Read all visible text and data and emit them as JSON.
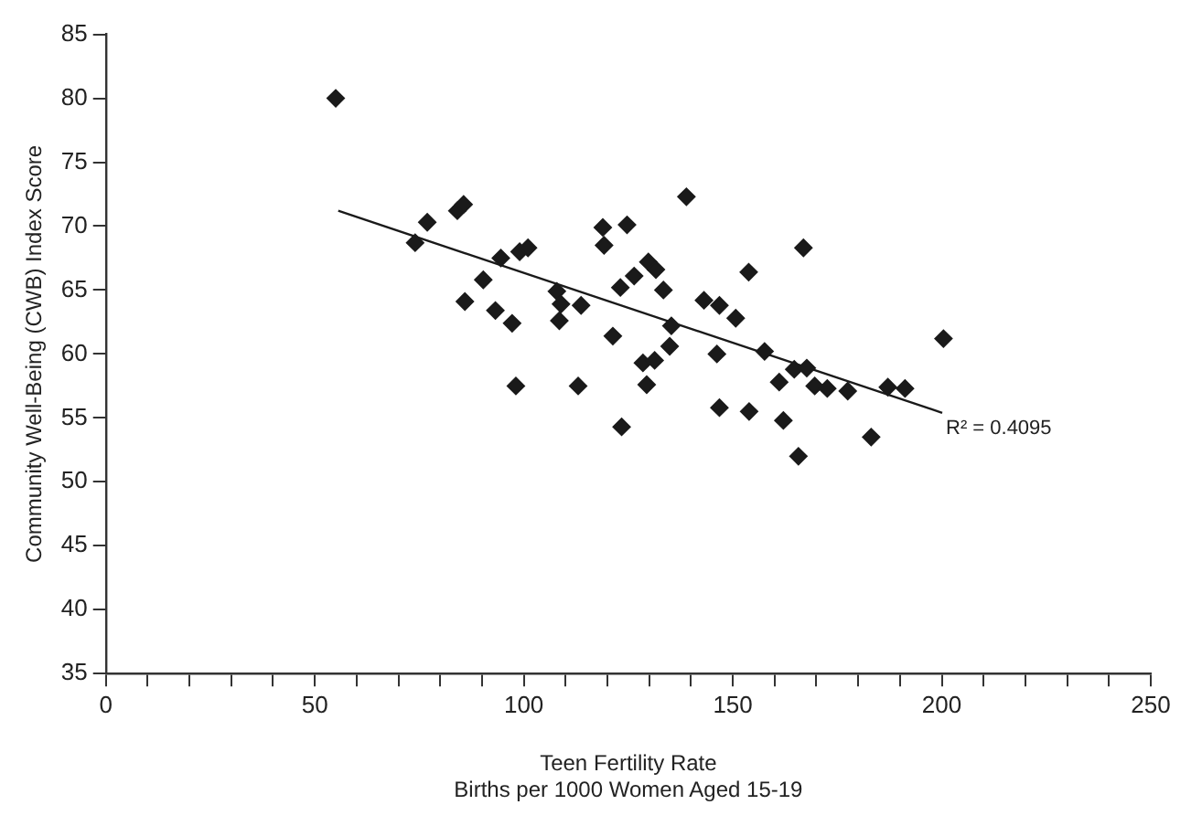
{
  "chart_data": {
    "type": "scatter",
    "xlabel": "Teen Fertility Rate\nBirths per 1000 Women Aged 15-19",
    "ylabel": "Community Well-Being (CWB) Index Score",
    "xlim": [
      0,
      250
    ],
    "ylim": [
      35,
      85
    ],
    "xticks": [
      0,
      {
        "value": 10,
        "label": null
      },
      {
        "value": 20,
        "label": null
      },
      {
        "value": 30,
        "label": null
      },
      {
        "value": 40,
        "label": null
      },
      50,
      {
        "value": 60,
        "label": null
      },
      {
        "value": 70,
        "label": null
      },
      {
        "value": 80,
        "label": null
      },
      {
        "value": 90,
        "label": null
      },
      100,
      {
        "value": 110,
        "label": null
      },
      {
        "value": 120,
        "label": null
      },
      {
        "value": 130,
        "label": null
      },
      {
        "value": 140,
        "label": null
      },
      150,
      {
        "value": 160,
        "label": null
      },
      {
        "value": 170,
        "label": null
      },
      {
        "value": 180,
        "label": null
      },
      {
        "value": 190,
        "label": null
      },
      200,
      {
        "value": 210,
        "label": null
      },
      {
        "value": 220,
        "label": null
      },
      {
        "value": 230,
        "label": null
      },
      {
        "value": 240,
        "label": null
      },
      250
    ],
    "yticks": [
      35,
      40,
      45,
      50,
      55,
      60,
      65,
      70,
      75,
      80,
      85
    ],
    "grid": false,
    "legend": false,
    "series": [
      {
        "type": "scatter",
        "marker": "diamond",
        "color": "#1a1a1a",
        "x": [
          55,
          74,
          76.9,
          84.1,
          85.6,
          94.5,
          99,
          101,
          90.3,
          85.9,
          93.2,
          97.2,
          107.9,
          108.9,
          108.5,
          113.7,
          98.1,
          113,
          118.9,
          119.2,
          138.9,
          124.7,
          166.9,
          129.8,
          131.6,
          153.8,
          126.4,
          123.1,
          133.4,
          143.1,
          146.8,
          150.7,
          121.3,
          135.3,
          134.9,
          146.2,
          157.6,
          200.4,
          128.5,
          131.3,
          129.4,
          164.7,
          167.7,
          161.1,
          169.6,
          172.6,
          177.5,
          187.1,
          191.2,
          146.8,
          153.9,
          162.1,
          123.4,
          183.1,
          165.7
        ],
        "values": [
          80,
          68.7,
          70.3,
          71.2,
          71.7,
          67.5,
          68,
          68.3,
          65.8,
          64.1,
          63.4,
          62.4,
          64.9,
          63.9,
          62.6,
          63.8,
          57.5,
          57.5,
          69.9,
          68.5,
          72.3,
          70.1,
          68.3,
          67.2,
          66.6,
          66.4,
          66.1,
          65.2,
          65,
          64.2,
          63.8,
          62.8,
          61.4,
          62.2,
          60.6,
          60,
          60.2,
          61.2,
          59.3,
          59.5,
          57.6,
          58.8,
          58.9,
          57.8,
          57.5,
          57.3,
          57.1,
          57.4,
          57.3,
          55.8,
          55.5,
          54.8,
          54.3,
          53.5,
          52
        ]
      },
      {
        "type": "line",
        "color": "#1a1a1a",
        "x": [
          55.6,
          200.1
        ],
        "values": [
          71.2,
          55.4
        ]
      }
    ],
    "annotations": [
      {
        "text": "R² = 0.4095",
        "x": 200.1,
        "y": 55.4
      }
    ]
  }
}
